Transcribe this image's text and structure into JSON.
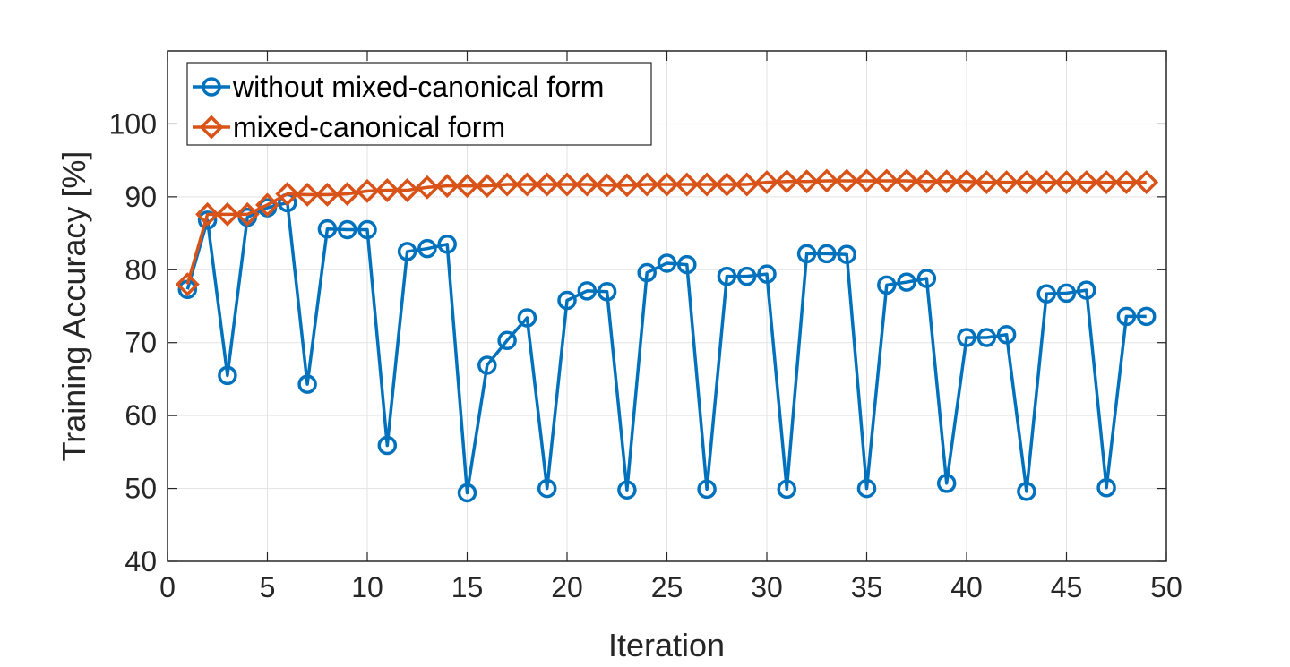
{
  "chart_data": {
    "type": "line",
    "title": "",
    "xlabel": "Iteration",
    "ylabel": "Training Accuracy [%]",
    "xlim": [
      0,
      50
    ],
    "ylim": [
      40,
      110
    ],
    "xticks": [
      0,
      5,
      10,
      15,
      20,
      25,
      30,
      35,
      40,
      45,
      50
    ],
    "yticks": [
      40,
      50,
      60,
      70,
      80,
      90,
      100
    ],
    "grid": true,
    "legend_position": "top-left",
    "series": [
      {
        "name": "without mixed-canonical form",
        "color": "#0072BD",
        "marker": "circle",
        "x": [
          1,
          2,
          3,
          4,
          5,
          6,
          7,
          8,
          9,
          10,
          11,
          12,
          13,
          14,
          15,
          16,
          17,
          18,
          19,
          20,
          21,
          22,
          23,
          24,
          25,
          26,
          27,
          28,
          29,
          30,
          31,
          32,
          33,
          34,
          35,
          36,
          37,
          38,
          39,
          40,
          41,
          42,
          43,
          44,
          45,
          46,
          47,
          48,
          49
        ],
        "values": [
          77.3,
          86.8,
          65.5,
          87.2,
          88.5,
          89.2,
          64.3,
          85.6,
          85.5,
          85.5,
          55.9,
          82.5,
          82.9,
          83.5,
          49.4,
          66.9,
          70.3,
          73.4,
          50.0,
          75.8,
          77.1,
          77.0,
          49.8,
          79.6,
          80.9,
          80.7,
          49.9,
          79.1,
          79.1,
          79.4,
          49.9,
          82.2,
          82.2,
          82.1,
          50.0,
          77.9,
          78.3,
          78.8,
          50.7,
          70.7,
          70.7,
          71.1,
          49.6,
          76.7,
          76.8,
          77.2,
          50.1,
          73.6,
          73.6
        ]
      },
      {
        "name": "mixed-canonical form",
        "color": "#D95319",
        "marker": "diamond",
        "x": [
          1,
          2,
          3,
          4,
          5,
          6,
          7,
          8,
          9,
          10,
          11,
          12,
          13,
          14,
          15,
          16,
          17,
          18,
          19,
          20,
          21,
          22,
          23,
          24,
          25,
          26,
          27,
          28,
          29,
          30,
          31,
          32,
          33,
          34,
          35,
          36,
          37,
          38,
          39,
          40,
          41,
          42,
          43,
          44,
          45,
          46,
          47,
          48,
          49
        ],
        "values": [
          78.0,
          87.6,
          87.6,
          87.6,
          88.9,
          90.4,
          90.3,
          90.3,
          90.4,
          90.8,
          90.9,
          90.9,
          91.3,
          91.5,
          91.5,
          91.5,
          91.7,
          91.7,
          91.7,
          91.7,
          91.7,
          91.6,
          91.6,
          91.7,
          91.7,
          91.7,
          91.7,
          91.7,
          91.7,
          92.0,
          92.1,
          92.1,
          92.2,
          92.2,
          92.2,
          92.2,
          92.2,
          92.1,
          92.1,
          92.1,
          92.0,
          92.0,
          92.0,
          92.0,
          92.0,
          92.0,
          92.0,
          92.0,
          92.0
        ]
      }
    ]
  }
}
